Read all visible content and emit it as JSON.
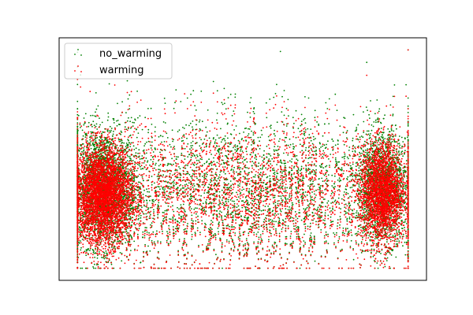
{
  "chart_data": {
    "type": "scatter",
    "title": "",
    "xlabel": "",
    "ylabel": "",
    "xlim": [
      0,
      1
    ],
    "ylim": [
      0,
      1
    ],
    "axes_ticks_visible": false,
    "grid": false,
    "legend": {
      "placement": "top-left",
      "entries": [
        {
          "label": "no_warming",
          "color": "#008000"
        },
        {
          "label": "warming",
          "color": "#ff0000"
        }
      ]
    },
    "series": [
      {
        "name": "no_warming",
        "color": "#008000",
        "marker_size": 0.9,
        "description": "dense clusters at left and right edges with a spread band across the middle",
        "clusters": [
          {
            "x_center": 0.12,
            "x_spread": 0.045,
            "y_center": 0.38,
            "y_spread": 0.12,
            "count": 2600
          },
          {
            "x_center": 0.88,
            "x_spread": 0.035,
            "y_center": 0.38,
            "y_spread": 0.11,
            "count": 1800
          },
          {
            "x_center": 0.5,
            "x_spread": 0.28,
            "y_center": 0.37,
            "y_spread": 0.16,
            "count": 3200
          }
        ]
      },
      {
        "name": "warming",
        "color": "#ff0000",
        "marker_size": 0.9,
        "description": "very dense solid clusters at left and right edges, overlaying no_warming",
        "clusters": [
          {
            "x_center": 0.12,
            "x_spread": 0.04,
            "y_center": 0.35,
            "y_spread": 0.1,
            "count": 4200
          },
          {
            "x_center": 0.88,
            "x_spread": 0.03,
            "y_center": 0.36,
            "y_spread": 0.1,
            "count": 2600
          },
          {
            "x_center": 0.5,
            "x_spread": 0.28,
            "y_center": 0.35,
            "y_spread": 0.15,
            "count": 3400
          }
        ]
      }
    ]
  }
}
